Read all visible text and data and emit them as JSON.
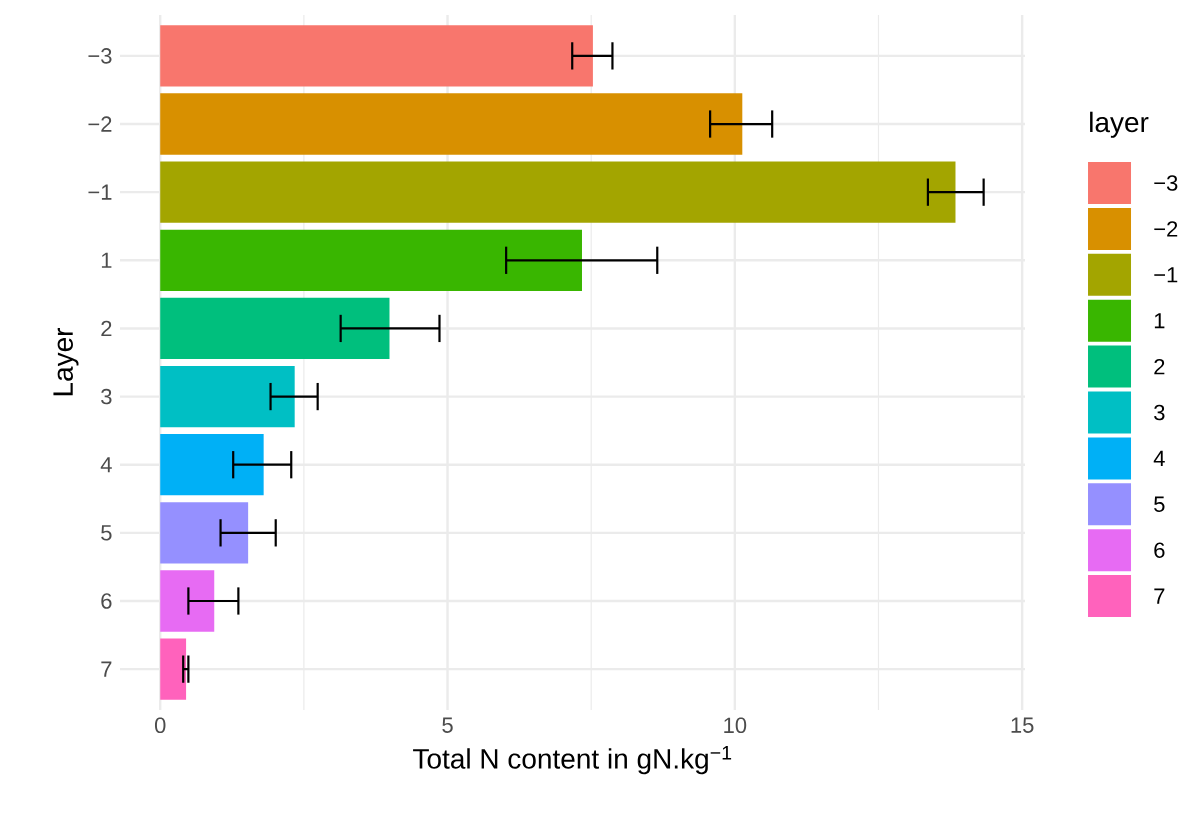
{
  "chart_data": {
    "type": "bar",
    "orientation": "horizontal",
    "xlabel": "Total N content in gN.kg$^{−1}$",
    "ylabel": "Layer",
    "legend_title": "layer",
    "categories": [
      "−3",
      "−2",
      "−1",
      "1",
      "2",
      "3",
      "4",
      "5",
      "6",
      "7"
    ],
    "values": [
      7.53,
      10.13,
      13.84,
      7.34,
      3.99,
      2.34,
      1.8,
      1.53,
      0.94,
      0.45
    ],
    "errors": [
      [
        7.17,
        7.87
      ],
      [
        9.57,
        10.65
      ],
      [
        13.36,
        14.33
      ],
      [
        6.02,
        8.65
      ],
      [
        3.14,
        4.86
      ],
      [
        1.92,
        2.74
      ],
      [
        1.27,
        2.28
      ],
      [
        1.05,
        2.01
      ],
      [
        0.49,
        1.36
      ],
      [
        0.4,
        0.49
      ]
    ],
    "colors": [
      "#f8766d",
      "#d89000",
      "#a3a500",
      "#39b600",
      "#00bf7d",
      "#00bfc4",
      "#00b0f6",
      "#9590ff",
      "#e76bf3",
      "#ff62bc"
    ],
    "xlim": [
      -0.7,
      15.05
    ],
    "xticks": [
      0,
      5,
      10,
      15
    ],
    "grid": true
  }
}
